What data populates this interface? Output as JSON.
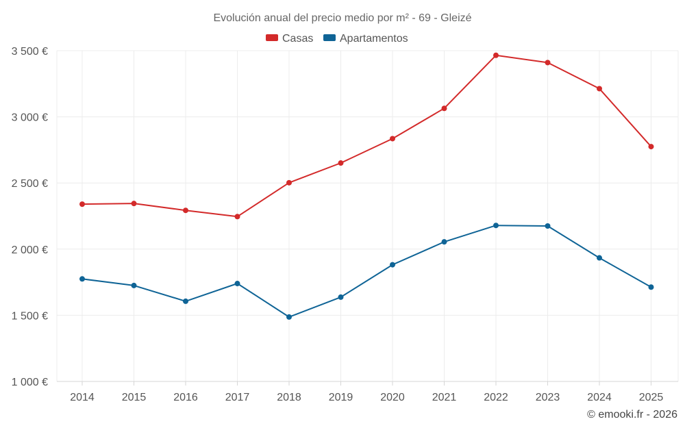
{
  "chart_data": {
    "type": "line",
    "title": "Evolución anual del precio medio por m² - 69 - Gleizé",
    "xlabel": "",
    "ylabel": "",
    "x": [
      "2014",
      "2015",
      "2016",
      "2017",
      "2018",
      "2019",
      "2020",
      "2021",
      "2022",
      "2023",
      "2024",
      "2025"
    ],
    "ylim": [
      1000,
      3500
    ],
    "yticks": [
      1000,
      1500,
      2000,
      2500,
      3000,
      3500
    ],
    "ytick_labels": [
      "1 000 €",
      "1 500 €",
      "2 000 €",
      "2 500 €",
      "3 000 €",
      "3 500 €"
    ],
    "grid": true,
    "legend_position": "top-center",
    "series": [
      {
        "name": "Casas",
        "color": "#d32a2a",
        "values": [
          2340,
          2345,
          2293,
          2246,
          2502,
          2651,
          2835,
          3064,
          3465,
          3410,
          3213,
          2775
        ]
      },
      {
        "name": "Apartamentos",
        "color": "#0f6496",
        "values": [
          1775,
          1725,
          1606,
          1740,
          1487,
          1637,
          1882,
          2055,
          2179,
          2175,
          1934,
          1713
        ]
      }
    ]
  },
  "credit": "© emooki.fr - 2026"
}
